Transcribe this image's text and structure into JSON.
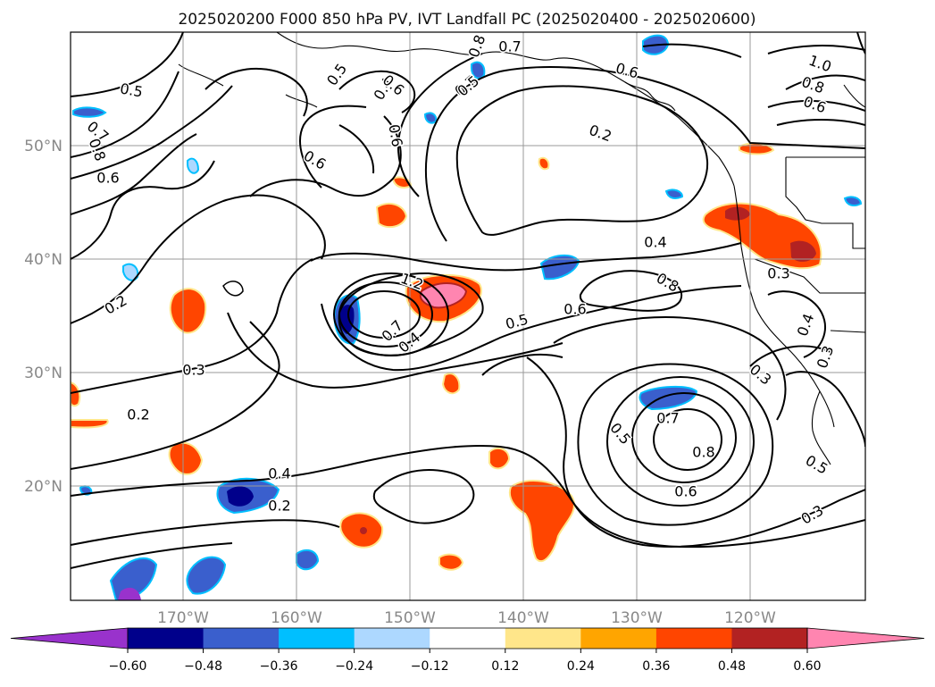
{
  "title": "2025020200 F000 850 hPa PV, IVT Landfall PC (2025020400 - 2025020600)",
  "lat_labels": [
    "20°N",
    "30°N",
    "40°N",
    "50°N"
  ],
  "lon_labels": [
    "170°W",
    "160°W",
    "150°W",
    "140°W",
    "130°W",
    "120°W"
  ],
  "colorbar": {
    "ticks": [
      "−0.60",
      "−0.48",
      "−0.36",
      "−0.24",
      "−0.12",
      "0.12",
      "0.24",
      "0.36",
      "0.48",
      "0.60"
    ],
    "colors": [
      "#9932cc",
      "#00008b",
      "#3a5fcd",
      "#00bfff",
      "#add8ff",
      "#ffffff",
      "#ffe68a",
      "#ffa500",
      "#ff4500",
      "#b22222",
      "#ff85b0",
      "#ff85b0"
    ]
  },
  "contour_labels": [
    "0.7",
    "0.8",
    "0.6",
    "0.5",
    "0.4",
    "0.6",
    "1.0",
    "0.8",
    "0.6",
    "0.5",
    "0.7",
    "0.8",
    "0.6",
    "0.7",
    "0.6",
    "0.2",
    "0.6",
    "0.4",
    "0.8",
    "1.2",
    "0.7",
    "0.4",
    "0.5",
    "0.6",
    "0.3",
    "0.2",
    "0.3",
    "0.2",
    "0.4",
    "0.2",
    "0.7",
    "0.8",
    "0.5",
    "0.6",
    "0.5",
    "0.3",
    "0.3",
    "0.4",
    "0.3",
    "0.5"
  ]
}
